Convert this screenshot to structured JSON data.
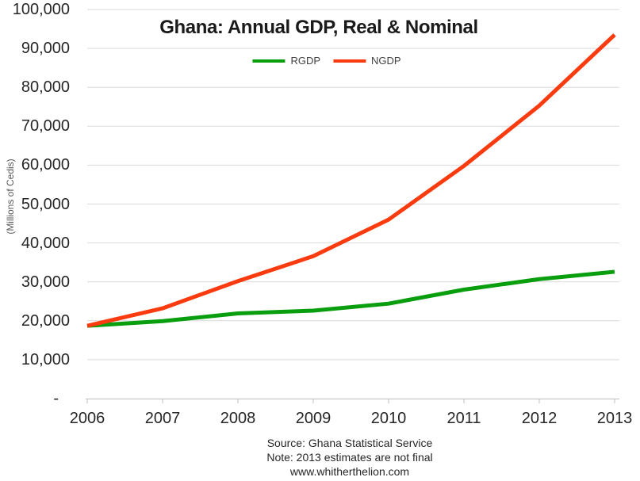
{
  "title": "Ghana: Annual GDP, Real & Nominal",
  "legend": [
    {
      "label": "RGDP",
      "color": "#089e0d"
    },
    {
      "label": "NGDP",
      "color": "#fa3b0f"
    }
  ],
  "footer": {
    "source": "Source: Ghana Statistical Service",
    "note": "Note: 2013 estimates are not final",
    "website": "www.whitherthelion.com"
  },
  "colors": {
    "rgdp_line": "#089e0d",
    "ngdp_line": "#fa3b0f",
    "gridline": "#d9d9d9",
    "axis": "#bfbfbf"
  },
  "chart_data": {
    "type": "line",
    "title": "Ghana: Annual GDP, Real & Nominal",
    "categories": [
      "2006",
      "2007",
      "2008",
      "2009",
      "2010",
      "2011",
      "2012",
      "2013"
    ],
    "series": [
      {
        "name": "RGDP",
        "color": "#089e0d",
        "values": [
          18700,
          19900,
          21900,
          22600,
          24400,
          28000,
          30700,
          32600
        ]
      },
      {
        "name": "NGDP",
        "color": "#fa3b0f",
        "values": [
          18700,
          23200,
          30200,
          36600,
          46000,
          59800,
          75300,
          93500
        ]
      }
    ],
    "xlabel": "",
    "ylabel": "(Millions of Cedis)",
    "ylim": [
      0,
      100000
    ],
    "y_tick_step": 10000,
    "y_ticks": [
      {
        "value": 100000,
        "label": "100,000"
      },
      {
        "value": 90000,
        "label": "90,000"
      },
      {
        "value": 80000,
        "label": "80,000"
      },
      {
        "value": 70000,
        "label": "70,000"
      },
      {
        "value": 60000,
        "label": "60,000"
      },
      {
        "value": 50000,
        "label": "50,000"
      },
      {
        "value": 40000,
        "label": "40,000"
      },
      {
        "value": 30000,
        "label": "30,000"
      },
      {
        "value": 20000,
        "label": "20,000"
      },
      {
        "value": 10000,
        "label": "10,000"
      },
      {
        "value": 0,
        "label": "-"
      }
    ],
    "grid": "horizontal",
    "legend_position": "top-center"
  }
}
